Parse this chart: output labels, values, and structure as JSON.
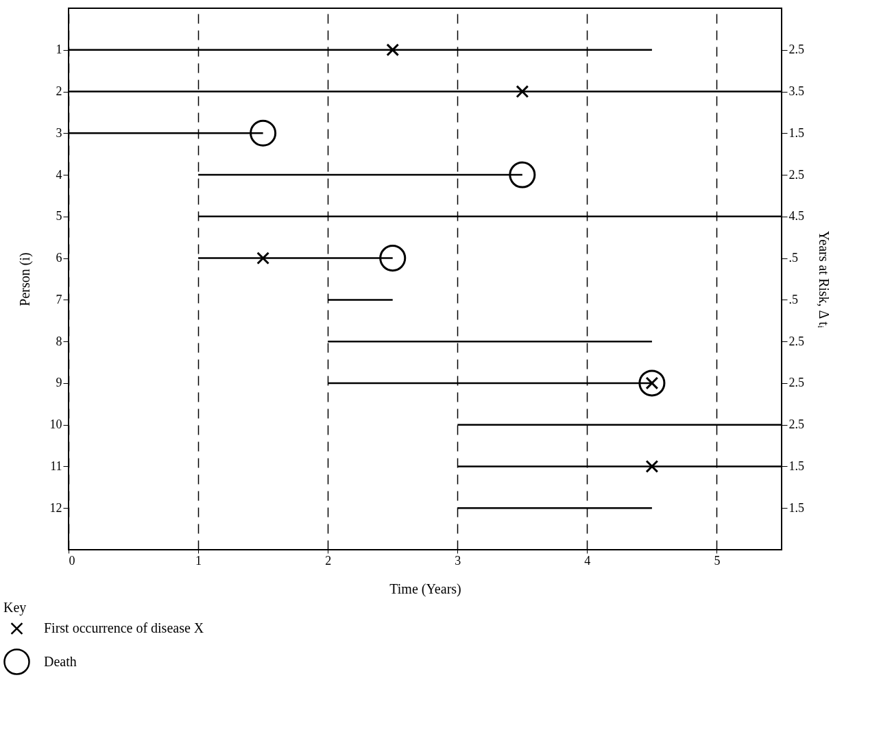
{
  "chart_data": {
    "type": "bar",
    "orientation": "horizontal",
    "xlabel": "Time (Years)",
    "ylabel": "Person (i)",
    "y2label": "Years at Risk, Δ tᵢ",
    "legend_title": "Key",
    "legend": "bottom left",
    "grid": "x",
    "categories": [
      "1",
      "2",
      "3",
      "4",
      "5",
      "6",
      "7",
      "8",
      "9",
      "10",
      "11",
      "12"
    ],
    "y2_categories": [
      "2.5",
      "3.5",
      "1.5",
      "2.5",
      "4.5",
      ".5",
      ".5",
      "2.5",
      "2.5",
      "2.5",
      "1.5",
      "1.5"
    ],
    "xlim": [
      0,
      5.5
    ],
    "xticks": [
      0,
      1,
      2,
      3,
      4,
      5
    ],
    "series": [
      {
        "color": "#000000",
        "base": [
          0,
          0,
          0,
          1,
          1,
          1,
          2,
          2,
          2,
          3,
          3,
          3
        ],
        "values": [
          4.5,
          5.5,
          1.5,
          2.5,
          4.5,
          1.5,
          0.5,
          2.5,
          2.5,
          2.5,
          2.5,
          1.5
        ]
      },
      {
        "type": "scatter",
        "name": "First occurrence of disease X",
        "marker": "cross",
        "color": "#000000",
        "x": [
          "1",
          "2",
          "6",
          "9",
          "11"
        ],
        "values": [
          2.5,
          3.5,
          1.5,
          4.5,
          4.5
        ]
      },
      {
        "type": "scatter",
        "name": "Death",
        "marker": "circle",
        "color": "#000000",
        "x": [
          "3",
          "4",
          "6",
          "9"
        ],
        "values": [
          1.5,
          3.5,
          2.5,
          4.5
        ]
      }
    ]
  }
}
